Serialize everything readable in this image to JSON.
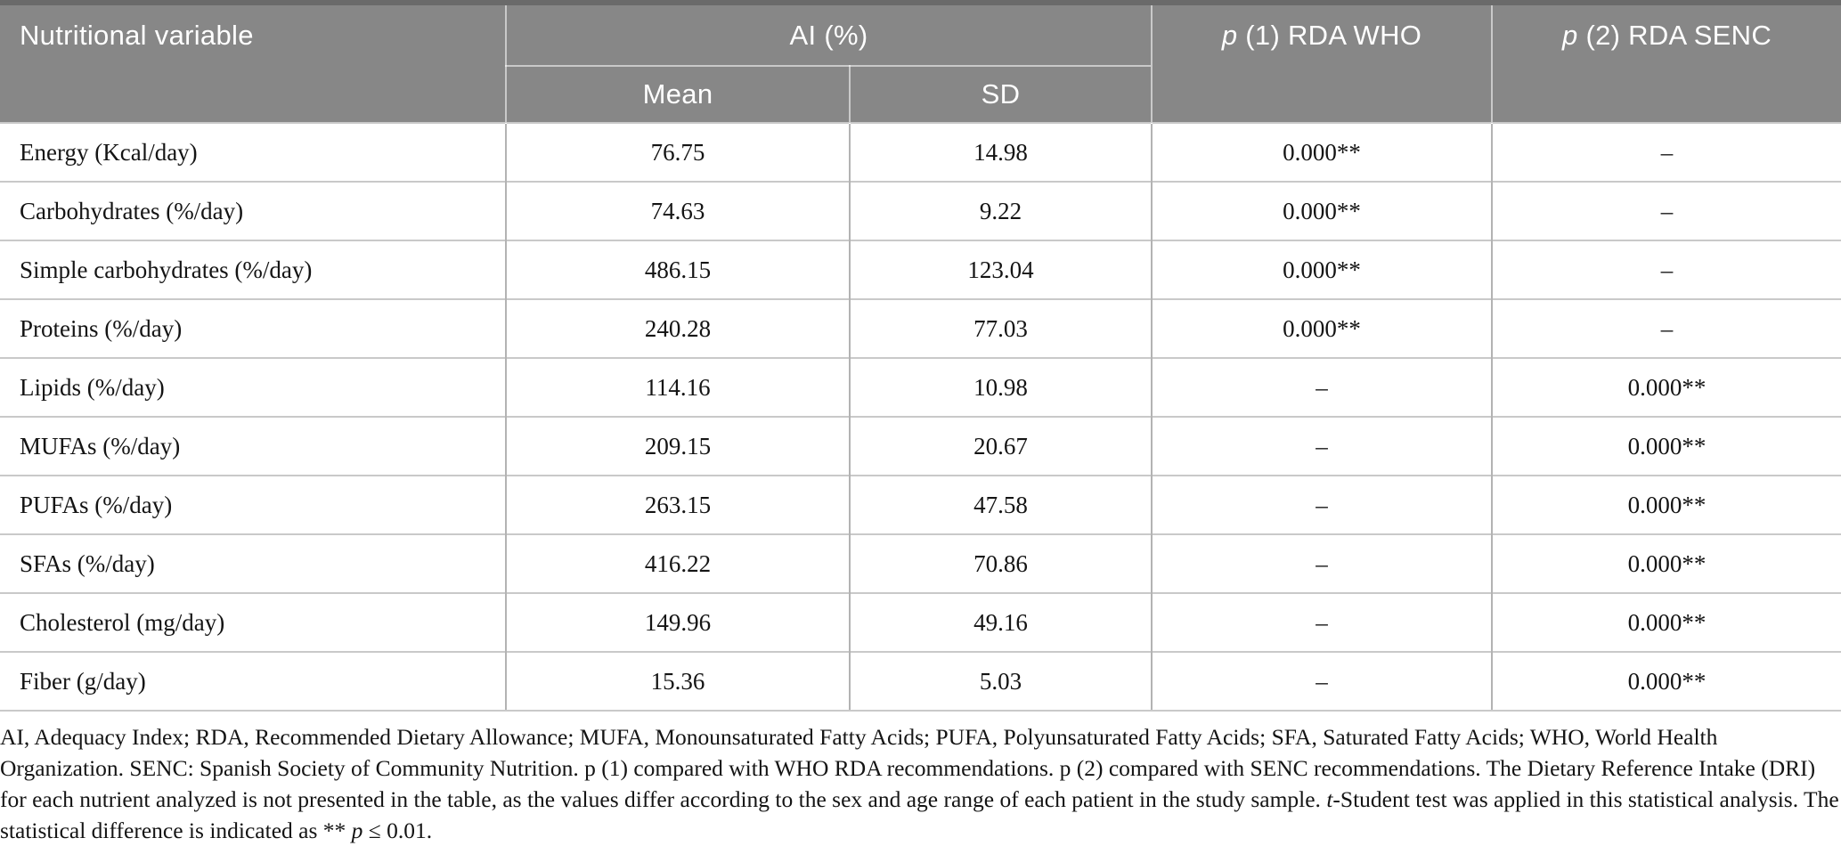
{
  "table": {
    "header": {
      "nutritional_variable": "Nutritional variable",
      "ai": "AI (%)",
      "mean": "Mean",
      "sd": "SD",
      "p1_italic": "p",
      "p1_rest": " (1) RDA WHO",
      "p2_italic": "p",
      "p2_rest": " (2) RDA SENC"
    },
    "rows": [
      {
        "label": "Energy (Kcal/day)",
        "mean": "76.75",
        "sd": "14.98",
        "p1": "0.000**",
        "p2": "–"
      },
      {
        "label": "Carbohydrates (%/day)",
        "mean": "74.63",
        "sd": "9.22",
        "p1": "0.000**",
        "p2": "–"
      },
      {
        "label": "Simple carbohydrates (%/day)",
        "mean": "486.15",
        "sd": "123.04",
        "p1": "0.000**",
        "p2": "–"
      },
      {
        "label": "Proteins (%/day)",
        "mean": "240.28",
        "sd": "77.03",
        "p1": "0.000**",
        "p2": "–"
      },
      {
        "label": "Lipids (%/day)",
        "mean": "114.16",
        "sd": "10.98",
        "p1": "–",
        "p2": "0.000**"
      },
      {
        "label": "MUFAs (%/day)",
        "mean": "209.15",
        "sd": "20.67",
        "p1": "–",
        "p2": "0.000**"
      },
      {
        "label": "PUFAs (%/day)",
        "mean": "263.15",
        "sd": "47.58",
        "p1": "–",
        "p2": "0.000**"
      },
      {
        "label": "SFAs (%/day)",
        "mean": "416.22",
        "sd": "70.86",
        "p1": "–",
        "p2": "0.000**"
      },
      {
        "label": "Cholesterol (mg/day)",
        "mean": "149.96",
        "sd": "49.16",
        "p1": "–",
        "p2": "0.000**"
      },
      {
        "label": "Fiber (g/day)",
        "mean": "15.36",
        "sd": "5.03",
        "p1": "–",
        "p2": "0.000**"
      }
    ]
  },
  "footnote": {
    "segments": [
      {
        "text": "AI, Adequacy Index; RDA, Recommended Dietary Allowance; MUFA, Monounsaturated Fatty Acids; PUFA, Polyunsaturated Fatty Acids; SFA, Saturated Fatty Acids; WHO, World Health Organization. SENC: Spanish Society of Community Nutrition. p (1) compared with WHO RDA recommendations. p (2) compared with SENC recommendations. The Dietary Reference Intake (DRI) for each nutrient analyzed is not presented in the table, as the values differ according to the sex and age range of each patient in the study sample. ",
        "italic": false
      },
      {
        "text": "t",
        "italic": true
      },
      {
        "text": "-Student test was applied in this statistical analysis. The statistical difference is indicated as ** ",
        "italic": false
      },
      {
        "text": "p",
        "italic": true
      },
      {
        "text": " ≤ 0.01.",
        "italic": false
      }
    ]
  },
  "colors": {
    "header_background": "#878787",
    "header_top_border": "#6a6a6a",
    "header_text": "#ffffff",
    "body_text": "#141414",
    "row_line": "#c9c9c9",
    "column_line": "#b3b3b3"
  }
}
